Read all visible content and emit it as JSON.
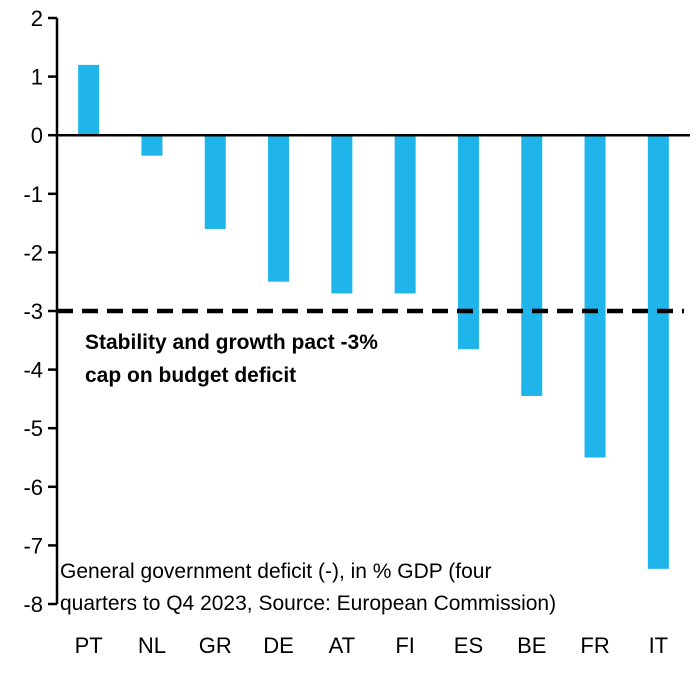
{
  "chart_data": {
    "type": "bar",
    "categories": [
      "PT",
      "NL",
      "GR",
      "DE",
      "AT",
      "FI",
      "ES",
      "BE",
      "FR",
      "IT"
    ],
    "values": [
      1.2,
      -0.35,
      -1.6,
      -2.5,
      -2.7,
      -2.7,
      -3.65,
      -4.45,
      -5.5,
      -7.4
    ],
    "title": "",
    "xlabel": "",
    "ylabel": "",
    "ylim": [
      -8,
      2
    ],
    "ytick_step": 1,
    "grid": "off",
    "bar_color": "#1FB5EA",
    "axis_color": "#000000",
    "reference_line": {
      "value": -3,
      "style": "dashed",
      "color": "#000000",
      "label_lines": [
        "Stability and growth pact -3%",
        "cap on budget deficit"
      ]
    },
    "caption_lines": [
      "General government deficit (-), in % GDP (four",
      "quarters to Q4 2023, Source: European Commission)"
    ]
  }
}
